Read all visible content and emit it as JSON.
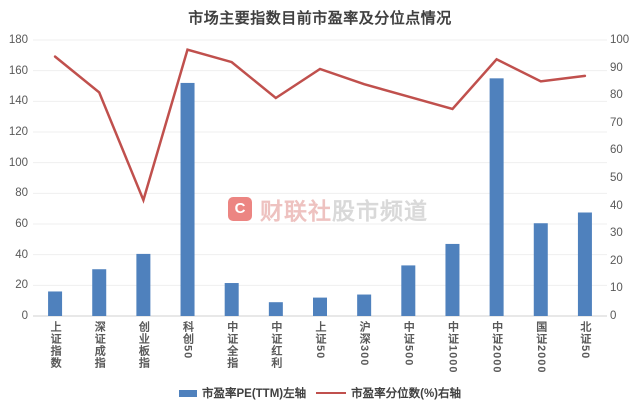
{
  "title": "市场主要指数目前市盈率及分位点情况",
  "watermark": {
    "badge_letter": "C",
    "brand": "财联社",
    "channel": "股市频道"
  },
  "legend": {
    "bar_label": "市盈率PE(TTM)左轴",
    "line_label": "市盈率分位数(%)右轴"
  },
  "colors": {
    "bar": "#4F81BD",
    "line": "#C0504D",
    "gridline": "#efefef",
    "axis_line": "#d9d9d9",
    "tick_text": "#595959"
  },
  "chart_data": {
    "type": "bar",
    "combo": "bar+line",
    "title": "市场主要指数目前市盈率及分位点情况",
    "categories": [
      "上证指数",
      "深证成指",
      "创业板指",
      "科创50",
      "中证全指",
      "中证红利",
      "上证50",
      "沪深300",
      "中证500",
      "中证1000",
      "中证2000",
      "国证2000",
      "北证50"
    ],
    "series": [
      {
        "name": "市盈率PE(TTM)左轴",
        "type": "bar",
        "axis": "left",
        "color": "#4F81BD",
        "values": [
          16,
          30.5,
          40.5,
          152,
          21.5,
          9,
          12,
          14,
          33,
          47,
          155,
          60.5,
          67.5
        ]
      },
      {
        "name": "市盈率分位数(%)右轴",
        "type": "line",
        "axis": "right",
        "color": "#C0504D",
        "values": [
          94,
          81,
          42,
          96.5,
          92,
          79,
          89.5,
          84,
          79.5,
          75,
          93,
          85,
          87
        ]
      }
    ],
    "left_axis": {
      "min": 0,
      "max": 180,
      "step": 20
    },
    "right_axis": {
      "min": 0,
      "max": 100,
      "step": 10
    },
    "grid": true,
    "legend_position": "bottom"
  }
}
